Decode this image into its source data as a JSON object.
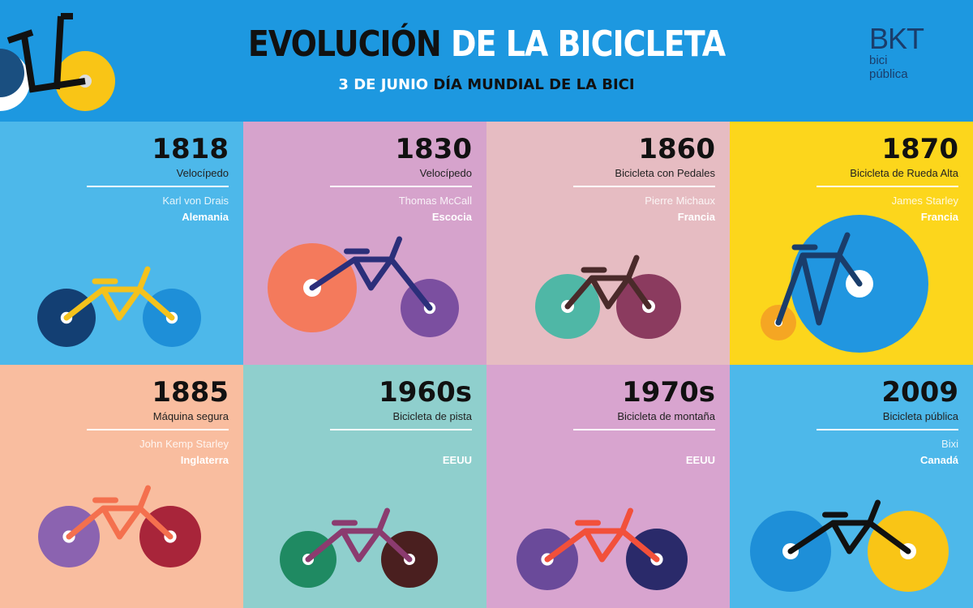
{
  "header": {
    "title_part1": "EVOLUCIÓN",
    "title_part2": "DE LA BICICLETA",
    "subtitle_part1": "3 DE JUNIO",
    "subtitle_part2": "DÍA MUNDIAL DE LA BICI",
    "logo": {
      "mark": "BKT",
      "line1": "bici",
      "line2": "pública"
    },
    "background": "#1d98e0"
  },
  "cells": [
    {
      "year": "1818",
      "type": "Velocípedo",
      "inventor": "Karl von Drais",
      "country": "Alemania",
      "bg": "#4db8ea",
      "wheels": [
        "#133f73",
        "#1e8fd8"
      ],
      "frame": "#f4c21c"
    },
    {
      "year": "1830",
      "type": "Velocípedo",
      "inventor": "Thomas McCall",
      "country": "Escocia",
      "bg": "#d6a3cc",
      "wheels": [
        "#f47a5c",
        "#7b4fa0"
      ],
      "frame": "#2b2f7a"
    },
    {
      "year": "1860",
      "type": "Bicicleta con Pedales",
      "inventor": "Pierre Michaux",
      "country": "Francia",
      "bg": "#e6bcc2",
      "wheels": [
        "#4fb7a6",
        "#8b3b5f"
      ],
      "frame": "#4a2a2a"
    },
    {
      "year": "1870",
      "type": "Bicicleta de Rueda Alta",
      "inventor": "James Starley",
      "country": "Francia",
      "bg": "#fcd61c",
      "wheels": [
        "#f5a623",
        "#2196e0"
      ],
      "frame": "#1a3d6b"
    },
    {
      "year": "1885",
      "type": "Máquina segura",
      "inventor": "John Kemp Starley",
      "country": "Inglaterra",
      "bg": "#f9bd9f",
      "wheels": [
        "#8b63b0",
        "#a8253a"
      ],
      "frame": "#f4704e"
    },
    {
      "year": "1960s",
      "type": "Bicicleta de pista",
      "inventor": "",
      "country": "EEUU",
      "bg": "#8fcfcd",
      "wheels": [
        "#1f8a62",
        "#4a1f1f"
      ],
      "frame": "#8b3b6f"
    },
    {
      "year": "1970s",
      "type": "Bicicleta de montaña",
      "inventor": "",
      "country": "EEUU",
      "bg": "#d8a4cf",
      "wheels": [
        "#6a4a9a",
        "#2a2a6a"
      ],
      "frame": "#f2503a"
    },
    {
      "year": "2009",
      "type": "Bicicleta pública",
      "inventor": "Bixi",
      "country": "Canadá",
      "bg": "#4db8ea",
      "wheels": [
        "#1e8fd8",
        "#f9c516"
      ],
      "frame": "#111111"
    }
  ]
}
